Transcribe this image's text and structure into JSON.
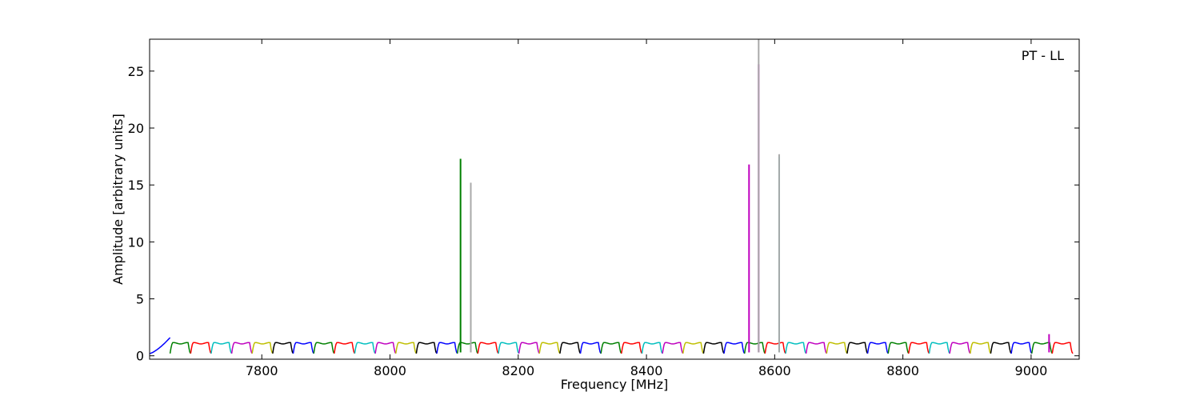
{
  "chart_data": {
    "type": "line",
    "title": "",
    "legend_text": "PT - LL",
    "legend_position": "top-right",
    "xlabel": "Frequency [MHz]",
    "ylabel": "Amplitude [arbitrary units]",
    "xlim": [
      7625,
      9075
    ],
    "ylim": [
      -0.3,
      27.8
    ],
    "xticks": [
      7800,
      8000,
      8200,
      8400,
      8600,
      8800,
      9000
    ],
    "yticks": [
      0,
      5,
      10,
      15,
      20,
      25
    ],
    "grid": false,
    "colors": [
      "#0000ff",
      "#008000",
      "#ff0000",
      "#00bfbf",
      "#bf00bf",
      "#bfbf00",
      "#000000"
    ],
    "channel_width_mhz": 32,
    "channel_start_mhz": 7625,
    "channel_count": 45,
    "baseline_amplitude": 1.1,
    "channel_edge_dip": 0.2,
    "spikes": [
      {
        "x": 8110,
        "y": 17.3,
        "color": "#008000"
      },
      {
        "x": 8126,
        "y": 12.7,
        "color": "#008000"
      },
      {
        "x": 8126,
        "y": 15.2,
        "color": "#aaaaaa"
      },
      {
        "x": 8560,
        "y": 16.8,
        "color": "#bf00bf"
      },
      {
        "x": 8575,
        "y": 25.6,
        "color": "#bf00bf"
      },
      {
        "x": 8575,
        "y": 27.8,
        "color": "#aaaaaa"
      },
      {
        "x": 8607,
        "y": 17.5,
        "color": "#00bfbf"
      },
      {
        "x": 8607,
        "y": 17.7,
        "color": "#aaaaaa"
      },
      {
        "x": 9028,
        "y": 1.9,
        "color": "#bf00bf"
      }
    ]
  }
}
